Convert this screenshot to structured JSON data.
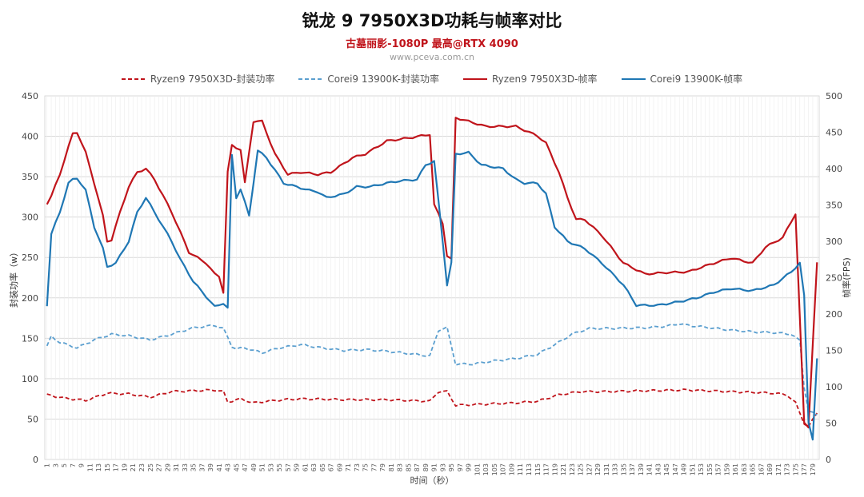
{
  "chart_data": {
    "type": "line",
    "title": "锐龙 9 7950X3D功耗与帧率对比",
    "subtitle": "古墓丽影-1080P 最高@RTX 4090",
    "watermark": "www.pceva.com.cn",
    "xlabel": "时间（秒）",
    "ylabel_left": "封装功率（w）",
    "ylabel_right": "帧率(FPS)",
    "ylim_left": [
      0,
      450
    ],
    "ylim_right": [
      0,
      500
    ],
    "yticks_left": [
      "0",
      "50",
      "100",
      "150",
      "200",
      "250",
      "300",
      "350",
      "400",
      "450"
    ],
    "yticks_right": [
      "0",
      "50",
      "100",
      "150",
      "200",
      "250",
      "300",
      "350",
      "400",
      "450",
      "500"
    ],
    "x_ticks": [
      "1",
      "3",
      "5",
      "7",
      "9",
      "11",
      "13",
      "15",
      "17",
      "19",
      "21",
      "23",
      "25",
      "27",
      "29",
      "31",
      "33",
      "35",
      "37",
      "39",
      "41",
      "43",
      "45",
      "47",
      "49",
      "51",
      "53",
      "55",
      "57",
      "59",
      "61",
      "63",
      "65",
      "67",
      "69",
      "71",
      "73",
      "75",
      "77",
      "79",
      "81",
      "83",
      "85",
      "87",
      "89",
      "91",
      "93",
      "95",
      "97",
      "99",
      "101",
      "103",
      "105",
      "107",
      "109",
      "111",
      "113",
      "115",
      "117",
      "119",
      "121",
      "123",
      "125",
      "127",
      "129",
      "131",
      "133",
      "135",
      "137",
      "139",
      "141",
      "143",
      "145",
      "147",
      "149",
      "151",
      "153",
      "155",
      "157",
      "159",
      "161",
      "163",
      "165",
      "167",
      "169",
      "171",
      "173",
      "175",
      "177",
      "179"
    ],
    "grid": true,
    "legend_position": "top",
    "x_count": 180,
    "series": [
      {
        "name": "Ryzen9 7950X3D-封装功率",
        "axis": "left",
        "style": "dashed",
        "color": "#c0141b",
        "keypoints": [
          [
            1,
            80
          ],
          [
            5,
            76
          ],
          [
            10,
            73
          ],
          [
            15,
            82
          ],
          [
            20,
            81
          ],
          [
            25,
            77
          ],
          [
            30,
            84
          ],
          [
            35,
            85
          ],
          [
            40,
            86
          ],
          [
            42,
            84
          ],
          [
            43,
            71
          ],
          [
            46,
            75
          ],
          [
            49,
            70
          ],
          [
            52,
            72
          ],
          [
            56,
            74
          ],
          [
            60,
            75
          ],
          [
            70,
            74
          ],
          [
            80,
            74
          ],
          [
            90,
            72
          ],
          [
            92,
            84
          ],
          [
            94,
            84
          ],
          [
            96,
            67
          ],
          [
            100,
            68
          ],
          [
            110,
            70
          ],
          [
            115,
            72
          ],
          [
            120,
            80
          ],
          [
            125,
            84
          ],
          [
            130,
            84
          ],
          [
            140,
            85
          ],
          [
            150,
            86
          ],
          [
            160,
            84
          ],
          [
            170,
            82
          ],
          [
            173,
            80
          ],
          [
            175,
            70
          ],
          [
            177,
            45
          ],
          [
            178,
            40
          ],
          [
            180,
            58
          ]
        ]
      },
      {
        "name": "Corei9 13900K-封装功率",
        "axis": "left",
        "style": "dashed",
        "color": "#5b9fcf",
        "keypoints": [
          [
            1,
            140
          ],
          [
            2,
            152
          ],
          [
            4,
            145
          ],
          [
            8,
            138
          ],
          [
            12,
            148
          ],
          [
            16,
            155
          ],
          [
            20,
            153
          ],
          [
            25,
            148
          ],
          [
            30,
            155
          ],
          [
            35,
            163
          ],
          [
            40,
            166
          ],
          [
            42,
            162
          ],
          [
            44,
            140
          ],
          [
            45,
            137
          ],
          [
            47,
            138
          ],
          [
            49,
            135
          ],
          [
            51,
            132
          ],
          [
            55,
            138
          ],
          [
            60,
            142
          ],
          [
            65,
            138
          ],
          [
            70,
            135
          ],
          [
            75,
            136
          ],
          [
            80,
            134
          ],
          [
            85,
            131
          ],
          [
            90,
            128
          ],
          [
            92,
            160
          ],
          [
            94,
            163
          ],
          [
            96,
            118
          ],
          [
            100,
            118
          ],
          [
            105,
            122
          ],
          [
            110,
            125
          ],
          [
            115,
            130
          ],
          [
            120,
            145
          ],
          [
            123,
            155
          ],
          [
            127,
            162
          ],
          [
            130,
            162
          ],
          [
            140,
            163
          ],
          [
            145,
            165
          ],
          [
            148,
            168
          ],
          [
            150,
            166
          ],
          [
            155,
            163
          ],
          [
            160,
            160
          ],
          [
            165,
            158
          ],
          [
            170,
            157
          ],
          [
            174,
            155
          ],
          [
            176,
            147
          ],
          [
            177,
            90
          ],
          [
            178,
            60
          ],
          [
            180,
            55
          ]
        ]
      },
      {
        "name": "Ryzen9 7950X3D-帧率",
        "axis": "right",
        "style": "solid",
        "color": "#c0141b",
        "keypoints": [
          [
            1,
            352
          ],
          [
            2,
            362
          ],
          [
            4,
            392
          ],
          [
            6,
            430
          ],
          [
            7,
            448
          ],
          [
            8,
            450
          ],
          [
            10,
            422
          ],
          [
            12,
            380
          ],
          [
            14,
            335
          ],
          [
            15,
            300
          ],
          [
            16,
            302
          ],
          [
            18,
            340
          ],
          [
            20,
            375
          ],
          [
            22,
            395
          ],
          [
            24,
            400
          ],
          [
            26,
            385
          ],
          [
            30,
            340
          ],
          [
            34,
            285
          ],
          [
            38,
            270
          ],
          [
            40,
            255
          ],
          [
            41,
            252
          ],
          [
            42,
            230
          ],
          [
            43,
            395
          ],
          [
            44,
            432
          ],
          [
            46,
            426
          ],
          [
            47,
            380
          ],
          [
            49,
            465
          ],
          [
            51,
            465
          ],
          [
            54,
            420
          ],
          [
            57,
            392
          ],
          [
            60,
            395
          ],
          [
            64,
            392
          ],
          [
            67,
            395
          ],
          [
            72,
            415
          ],
          [
            75,
            420
          ],
          [
            80,
            438
          ],
          [
            85,
            442
          ],
          [
            90,
            447
          ],
          [
            91,
            350
          ],
          [
            93,
            325
          ],
          [
            94,
            280
          ],
          [
            95,
            275
          ],
          [
            96,
            470
          ],
          [
            99,
            465
          ],
          [
            103,
            458
          ],
          [
            110,
            458
          ],
          [
            115,
            445
          ],
          [
            117,
            435
          ],
          [
            120,
            395
          ],
          [
            122,
            360
          ],
          [
            124,
            330
          ],
          [
            126,
            330
          ],
          [
            130,
            308
          ],
          [
            135,
            270
          ],
          [
            140,
            255
          ],
          [
            145,
            257
          ],
          [
            150,
            258
          ],
          [
            155,
            268
          ],
          [
            160,
            277
          ],
          [
            165,
            270
          ],
          [
            168,
            292
          ],
          [
            172,
            305
          ],
          [
            175,
            338
          ],
          [
            177,
            50
          ],
          [
            178,
            45
          ],
          [
            180,
            270
          ]
        ]
      },
      {
        "name": "Corei9 13900K-帧率",
        "axis": "right",
        "style": "solid",
        "color": "#1f77b4",
        "keypoints": [
          [
            1,
            212
          ],
          [
            2,
            310
          ],
          [
            4,
            340
          ],
          [
            6,
            380
          ],
          [
            7,
            385
          ],
          [
            8,
            387
          ],
          [
            10,
            370
          ],
          [
            12,
            320
          ],
          [
            14,
            290
          ],
          [
            15,
            265
          ],
          [
            17,
            270
          ],
          [
            20,
            300
          ],
          [
            22,
            340
          ],
          [
            24,
            360
          ],
          [
            26,
            340
          ],
          [
            28,
            320
          ],
          [
            30,
            300
          ],
          [
            32,
            275
          ],
          [
            35,
            245
          ],
          [
            40,
            210
          ],
          [
            42,
            215
          ],
          [
            43,
            208
          ],
          [
            44,
            418
          ],
          [
            45,
            360
          ],
          [
            46,
            372
          ],
          [
            48,
            335
          ],
          [
            50,
            425
          ],
          [
            52,
            415
          ],
          [
            54,
            398
          ],
          [
            56,
            380
          ],
          [
            59,
            375
          ],
          [
            62,
            370
          ],
          [
            64,
            368
          ],
          [
            66,
            360
          ],
          [
            70,
            365
          ],
          [
            73,
            375
          ],
          [
            76,
            375
          ],
          [
            80,
            380
          ],
          [
            83,
            383
          ],
          [
            87,
            385
          ],
          [
            89,
            405
          ],
          [
            91,
            410
          ],
          [
            93,
            300
          ],
          [
            94,
            240
          ],
          [
            95,
            270
          ],
          [
            96,
            420
          ],
          [
            99,
            422
          ],
          [
            102,
            405
          ],
          [
            107,
            400
          ],
          [
            110,
            385
          ],
          [
            112,
            380
          ],
          [
            115,
            380
          ],
          [
            117,
            365
          ],
          [
            119,
            320
          ],
          [
            122,
            300
          ],
          [
            126,
            290
          ],
          [
            130,
            270
          ],
          [
            135,
            240
          ],
          [
            138,
            212
          ],
          [
            143,
            212
          ],
          [
            148,
            217
          ],
          [
            152,
            222
          ],
          [
            156,
            230
          ],
          [
            160,
            235
          ],
          [
            165,
            232
          ],
          [
            170,
            240
          ],
          [
            174,
            258
          ],
          [
            176,
            270
          ],
          [
            177,
            225
          ],
          [
            178,
            52
          ],
          [
            179,
            28
          ],
          [
            180,
            138
          ]
        ]
      }
    ]
  }
}
